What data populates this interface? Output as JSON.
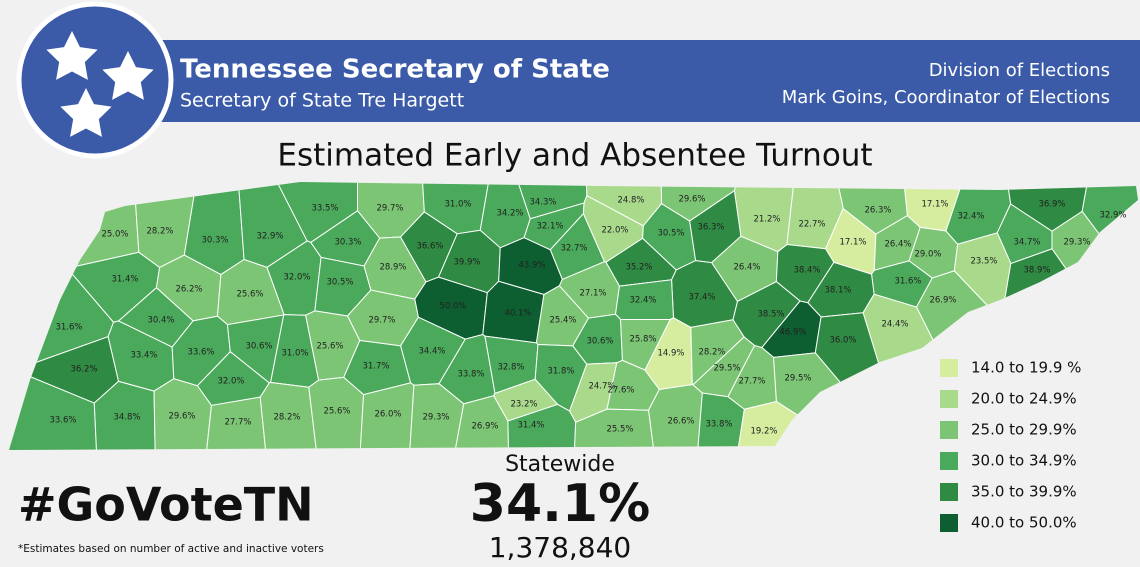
{
  "header": {
    "title": "Tennessee Secretary of State",
    "subtitle": "Secretary of State Tre Hargett",
    "division": "Division of Elections",
    "coordinator": "Mark Goins, Coordinator of Elections"
  },
  "map": {
    "title": "Estimated Early and Absentee Turnout",
    "counties": {
      "values": [
        25.0,
        28.2,
        30.3,
        32.9,
        33.5,
        29.7,
        31.0,
        34.2,
        34.3,
        24.8,
        29.6,
        17.1,
        36.9,
        32.9,
        32.4,
        26.3,
        21.2,
        22.7,
        32.1,
        22.0,
        30.5,
        36.3,
        30.3,
        36.6,
        17.1,
        26.4,
        29.0,
        34.7,
        29.3,
        32.7,
        31.4,
        39.9,
        43.9,
        32.0,
        30.5,
        28.9,
        35.2,
        26.4,
        38.4,
        23.5,
        38.9,
        26.2,
        25.6,
        31.6,
        38.1,
        27.1,
        37.4,
        50.0,
        40.1,
        32.4,
        26.9,
        31.6,
        30.4,
        29.7,
        25.4,
        38.5,
        24.4,
        46.9,
        36.0,
        30.6,
        25.8,
        33.4,
        33.6,
        30.6,
        31.0,
        25.6,
        34.4,
        14.9,
        28.2,
        36.2,
        31.7,
        33.8,
        32.8,
        31.8,
        29.5,
        27.7,
        29.5,
        32.0,
        24.7,
        27.6,
        23.2,
        33.6,
        34.8,
        29.6,
        27.7,
        28.2,
        25.6,
        26.0,
        29.3,
        26.9,
        31.4,
        25.5,
        26.6,
        33.8,
        19.2
      ],
      "value_labels": [
        "25.0%",
        "28.2%",
        "30.3%",
        "32.9%",
        "33.5%",
        "29.7%",
        "31.0%",
        "34.2%",
        "34.3%",
        "24.8%",
        "29.6%",
        "17.1%",
        "36.9%",
        "32.9%",
        "32.4%",
        "26.3%",
        "21.2%",
        "22.7%",
        "32.1%",
        "22.0%",
        "30.5%",
        "36.3%",
        "30.3%",
        "36.6%",
        "17.1%",
        "26.4%",
        "29.0%",
        "34.7%",
        "29.3%",
        "32.7%",
        "31.4%",
        "39.9%",
        "43.9%",
        "32.0%",
        "30.5%",
        "28.9%",
        "35.2%",
        "26.4%",
        "38.4%",
        "23.5%",
        "38.9%",
        "26.2%",
        "25.6%",
        "31.6%",
        "38.1%",
        "27.1%",
        "37.4%",
        "50.0%",
        "40.1%",
        "32.4%",
        "26.9%",
        "31.6%",
        "30.4%",
        "29.7%",
        "25.4%",
        "38.5%",
        "24.4%",
        "46.9%",
        "36.0%",
        "30.6%",
        "25.8%",
        "33.4%",
        "33.6%",
        "30.6%",
        "31.0%",
        "25.6%",
        "34.4%",
        "14.9%",
        "28.2%",
        "36.2%",
        "31.7%",
        "33.8%",
        "32.8%",
        "31.8%",
        "29.5%",
        "27.7%",
        "29.5%",
        "32.0%",
        "24.7%",
        "27.6%",
        "23.2%",
        "33.6%",
        "34.8%",
        "29.6%",
        "27.7%",
        "28.2%",
        "25.6%",
        "26.0%",
        "29.3%",
        "26.9%",
        "31.4%",
        "25.5%",
        "26.6%",
        "33.8%",
        "19.2%"
      ]
    },
    "legend": [
      {
        "label": "14.0 to 19.9 %",
        "range": [
          14.0,
          19.9
        ],
        "color": "#d6eda0"
      },
      {
        "label": "20.0 to 24.9%",
        "range": [
          20.0,
          24.9
        ],
        "color": "#a9da8c"
      },
      {
        "label": "25.0 to 29.9%",
        "range": [
          25.0,
          29.9
        ],
        "color": "#7cc574"
      },
      {
        "label": "30.0 to 34.9%",
        "range": [
          30.0,
          34.9
        ],
        "color": "#4aa95a"
      },
      {
        "label": "35.0 to 39.9%",
        "range": [
          35.0,
          39.9
        ],
        "color": "#2f8a43"
      },
      {
        "label": "40.0 to 50.0%",
        "range": [
          40.0,
          50.0
        ],
        "color": "#0d5e30"
      }
    ]
  },
  "summary": {
    "hashtag": "#GoVoteTN",
    "note": "*Estimates based on number of active and inactive voters",
    "label": "Statewide",
    "percent": "34.1%",
    "count": "1,378,840"
  }
}
